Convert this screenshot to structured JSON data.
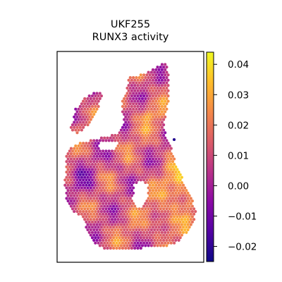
{
  "chart_data": {
    "type": "heatmap",
    "title_line1": "UKF255",
    "title_line2": "RUNX3 activity",
    "xlabel": "",
    "ylabel": "",
    "x_ticks": [],
    "y_ticks": [],
    "colormap": "plasma",
    "colormap_stops": [
      "#0d0887",
      "#5302a3",
      "#8b0aa5",
      "#b83289",
      "#db5c68",
      "#f48849",
      "#febd2a",
      "#f0f921"
    ],
    "value_range": [
      -0.025,
      0.044
    ],
    "colorbar_ticks": [
      {
        "value": 0.04,
        "label": "0.04"
      },
      {
        "value": 0.03,
        "label": "0.03"
      },
      {
        "value": 0.02,
        "label": "0.02"
      },
      {
        "value": 0.01,
        "label": "0.01"
      },
      {
        "value": 0.0,
        "label": "0.00"
      },
      {
        "value": -0.01,
        "label": "−0.01"
      },
      {
        "value": -0.02,
        "label": "−0.02"
      }
    ],
    "spot_value_summary": {
      "typical_min": -0.01,
      "typical_max": 0.04,
      "mean": 0.012
    }
  }
}
